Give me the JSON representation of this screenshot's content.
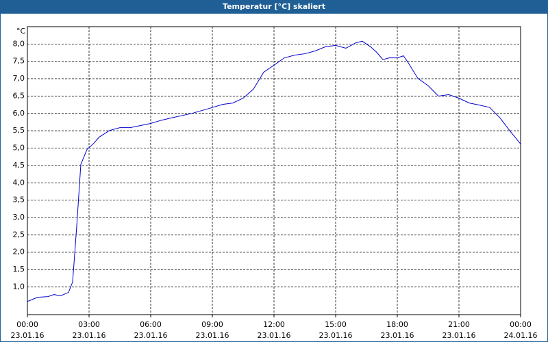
{
  "chart_data": {
    "type": "line",
    "title": "Temperatur [°C] skaliert",
    "y_label": "°C",
    "x": [
      0,
      0.5,
      1,
      1.3,
      1.6,
      2.0,
      2.2,
      2.4,
      2.6,
      2.9,
      3.2,
      3.5,
      4,
      4.5,
      5,
      6,
      6.5,
      7,
      8,
      9,
      9.5,
      10,
      10.5,
      11,
      11.5,
      12,
      12.5,
      13,
      13.5,
      14,
      14.5,
      15,
      15.5,
      16,
      16.3,
      16.7,
      17,
      17.3,
      17.6,
      18,
      18.3,
      18.5,
      19,
      19.5,
      20,
      20.5,
      21,
      21.5,
      22,
      22.5,
      23,
      23.5,
      24
    ],
    "series": [
      {
        "name": "Temperatur",
        "color": "#0000cc",
        "values": [
          0.58,
          0.7,
          0.72,
          0.78,
          0.74,
          0.84,
          1.14,
          2.75,
          4.53,
          4.96,
          5.12,
          5.32,
          5.51,
          5.59,
          5.59,
          5.71,
          5.8,
          5.87,
          6.0,
          6.17,
          6.26,
          6.3,
          6.44,
          6.7,
          7.19,
          7.39,
          7.6,
          7.68,
          7.72,
          7.8,
          7.92,
          7.96,
          7.88,
          8.04,
          8.08,
          7.92,
          7.76,
          7.55,
          7.6,
          7.6,
          7.66,
          7.49,
          7.01,
          6.8,
          6.5,
          6.54,
          6.44,
          6.3,
          6.24,
          6.17,
          5.87,
          5.48,
          5.12
        ]
      }
    ],
    "xlim": [
      0,
      24
    ],
    "xticks": [
      {
        "value": 0,
        "label": "00:00",
        "sublabel": "23.01.16"
      },
      {
        "value": 3,
        "label": "03:00",
        "sublabel": "23.01.16"
      },
      {
        "value": 6,
        "label": "06:00",
        "sublabel": "23.01.16"
      },
      {
        "value": 9,
        "label": "09:00",
        "sublabel": "23.01.16"
      },
      {
        "value": 12,
        "label": "12:00",
        "sublabel": "23.01.16"
      },
      {
        "value": 15,
        "label": "15:00",
        "sublabel": "23.01.16"
      },
      {
        "value": 18,
        "label": "18:00",
        "sublabel": "23.01.16"
      },
      {
        "value": 21,
        "label": "21:00",
        "sublabel": "23.01.16"
      },
      {
        "value": 24,
        "label": "00:00",
        "sublabel": "24.01.16"
      }
    ],
    "ylim": [
      0.2,
      8.5
    ],
    "yticks": [
      {
        "value": 1,
        "label": "1,0"
      },
      {
        "value": 1.5,
        "label": "1,5"
      },
      {
        "value": 2,
        "label": "2,0"
      },
      {
        "value": 2.5,
        "label": "2,5"
      },
      {
        "value": 3,
        "label": "3,0"
      },
      {
        "value": 3.5,
        "label": "3,5"
      },
      {
        "value": 4,
        "label": "4,0"
      },
      {
        "value": 4.5,
        "label": "4,5"
      },
      {
        "value": 5,
        "label": "5,0"
      },
      {
        "value": 5.5,
        "label": "5,5"
      },
      {
        "value": 6,
        "label": "6,0"
      },
      {
        "value": 6.5,
        "label": "6,5"
      },
      {
        "value": 7,
        "label": "7,0"
      },
      {
        "value": 7.5,
        "label": "7,5"
      },
      {
        "value": 8,
        "label": "8,0"
      }
    ],
    "grid": true
  }
}
